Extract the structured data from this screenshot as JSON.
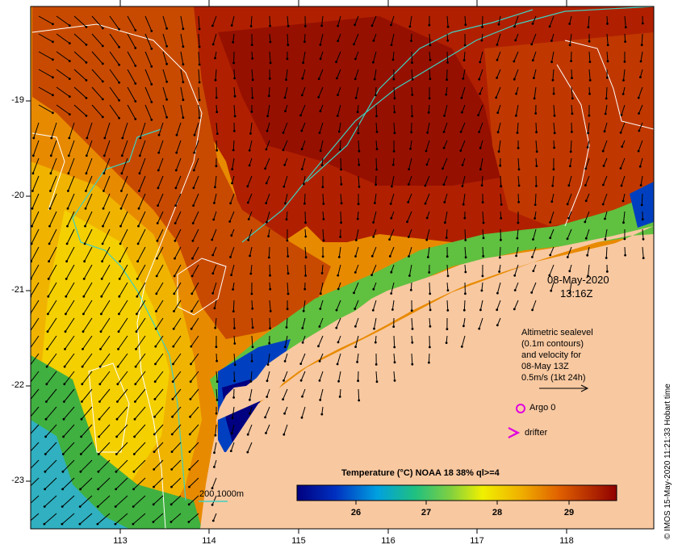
{
  "map": {
    "date": "08-May-2020",
    "time": "13:16Z",
    "x_ticks": [
      "113",
      "114",
      "115",
      "116",
      "117",
      "118"
    ],
    "y_ticks": [
      "-19",
      "-20",
      "-21",
      "-22",
      "-23"
    ],
    "lon_range": [
      112.0,
      119.0
    ],
    "lat_range": [
      -18.0,
      -23.5
    ]
  },
  "legend": {
    "sealevel_lines": [
      "Altimetric sealevel",
      "(0.1m contours)",
      "and velocity for",
      "08-May 13Z",
      "0.5m/s (1kt 24h)"
    ],
    "argo": "Argo 0",
    "drifter": "drifter",
    "isobath": "200  1000m"
  },
  "colorbar": {
    "title": "Temperature (°C) NOAA 18 38% ql>=4",
    "ticks": [
      "26",
      "27",
      "28",
      "29"
    ],
    "range": [
      25.0,
      29.6
    ]
  },
  "credit": "© IMOS 15-May-2020 11:21:33 Hobart time",
  "colors": {
    "land": "#f8c8a0",
    "warm_deep": "#a01000",
    "warm": "#d05000",
    "orange": "#e88a00",
    "yellow": "#f0c000",
    "green": "#30b040",
    "cyan": "#40c0e0",
    "blue": "#0030a0",
    "navy": "#000070",
    "contour_white": "#ffffff",
    "contour_cyan": "#40d0c0",
    "argo": "#e000e0"
  }
}
